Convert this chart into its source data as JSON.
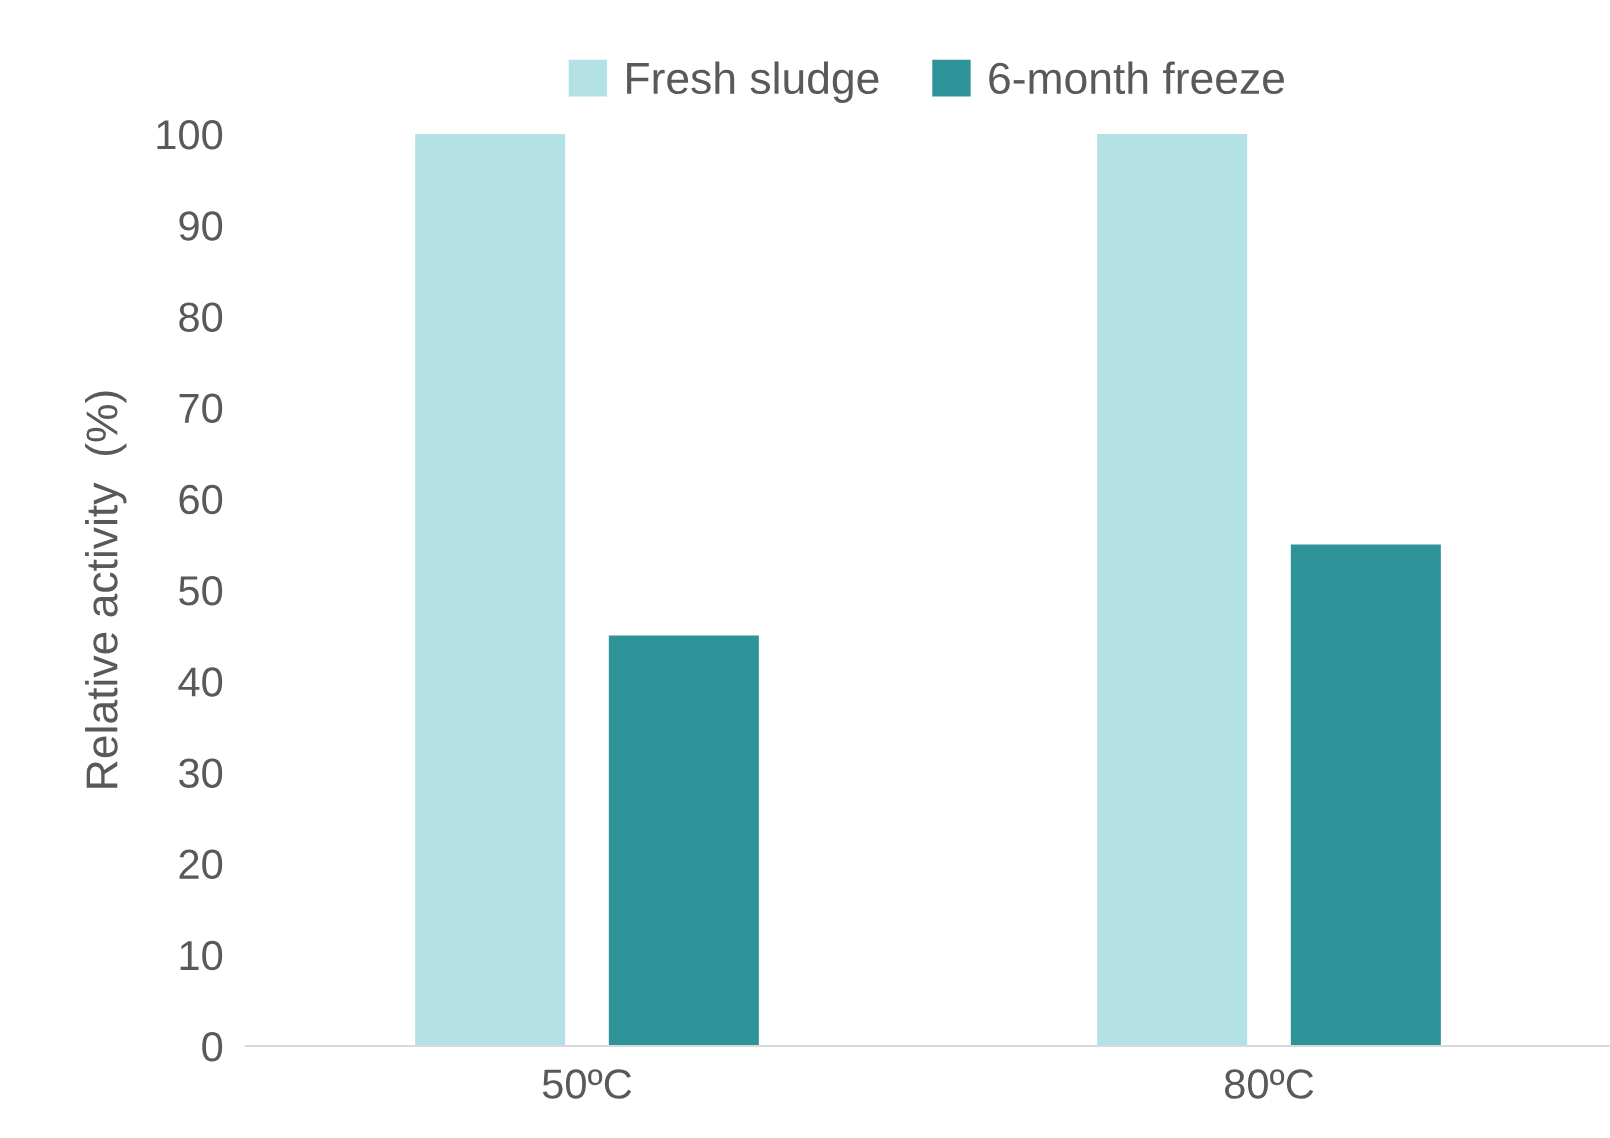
{
  "chart_data": {
    "type": "bar",
    "ylabel": "Relative activity  (%)",
    "categories": [
      "50ºC",
      "80ºC"
    ],
    "series": [
      {
        "name": "Fresh sludge",
        "color": "#b4e1e6",
        "values": [
          100,
          100
        ]
      },
      {
        "name": "6-month freeze",
        "color": "#2e9299",
        "values": [
          45,
          55
        ]
      }
    ],
    "ylim": [
      0,
      100
    ],
    "yticks": [
      0,
      10,
      20,
      30,
      40,
      50,
      60,
      70,
      80,
      90,
      100
    ],
    "grid": false,
    "legend": "top"
  }
}
